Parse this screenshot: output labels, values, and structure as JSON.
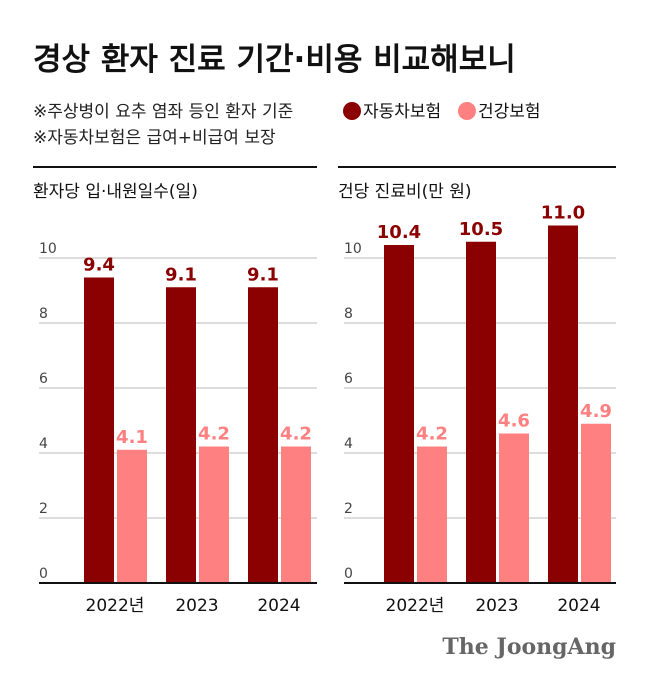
{
  "title": "경상 환자 진료 기간·비용 비교해보니",
  "notes": [
    "※주상병이 요추 염좌 등인 환자 기준",
    "※자동차보험은 급여+비급여 보장"
  ],
  "legend": [
    {
      "label": "자동차보험",
      "color": "#8B0000"
    },
    {
      "label": "건강보험",
      "color": "#FF8080"
    }
  ],
  "logo": "The JoongAng",
  "chart_data": [
    {
      "type": "bar",
      "title": "환자당 입·내원일수(일)",
      "categories": [
        "2022년",
        "2023",
        "2024"
      ],
      "series": [
        {
          "name": "자동차보험",
          "values": [
            9.4,
            9.1,
            9.1
          ],
          "color": "#8B0000"
        },
        {
          "name": "건강보험",
          "values": [
            4.1,
            4.2,
            4.2
          ],
          "color": "#FF8080"
        }
      ],
      "yticks": [
        0,
        2,
        4,
        6,
        8,
        10
      ],
      "ylim": [
        0,
        10
      ],
      "grid": true
    },
    {
      "type": "bar",
      "title": "건당 진료비(만 원)",
      "categories": [
        "2022년",
        "2023",
        "2024"
      ],
      "series": [
        {
          "name": "자동차보험",
          "values": [
            10.4,
            10.5,
            11.0
          ],
          "color": "#8B0000"
        },
        {
          "name": "건강보험",
          "values": [
            4.2,
            4.6,
            4.9
          ],
          "color": "#FF8080"
        }
      ],
      "yticks": [
        0,
        2,
        4,
        6,
        8,
        10
      ],
      "ylim": [
        0,
        10
      ],
      "grid": true
    }
  ]
}
